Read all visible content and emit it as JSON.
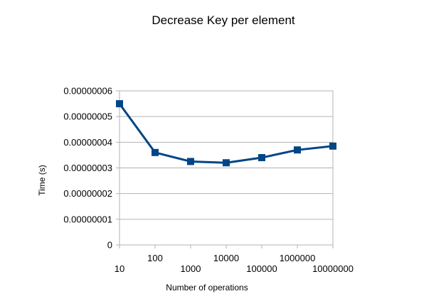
{
  "chart_data": {
    "type": "line",
    "title": "Decrease Key per element",
    "xlabel": "Number of operations",
    "ylabel": "Time (s)",
    "x_scale": "log",
    "x": [
      10,
      100,
      1000,
      10000,
      100000,
      1000000,
      10000000
    ],
    "x_tick_labels": [
      "10",
      "100",
      "1000",
      "10000",
      "100000",
      "1000000",
      "10000000"
    ],
    "y_tick_labels": [
      "0",
      "0.00000001",
      "0.00000002",
      "0.00000003",
      "0.00000004",
      "0.00000005",
      "0.00000006"
    ],
    "ylim": [
      0,
      6e-08
    ],
    "grid": true,
    "legend": "none",
    "series": [
      {
        "color": "#004586",
        "marker": "square",
        "values": [
          5.5e-08,
          3.6e-08,
          3.25e-08,
          3.2e-08,
          3.4e-08,
          3.7e-08,
          3.85e-08
        ]
      }
    ]
  }
}
